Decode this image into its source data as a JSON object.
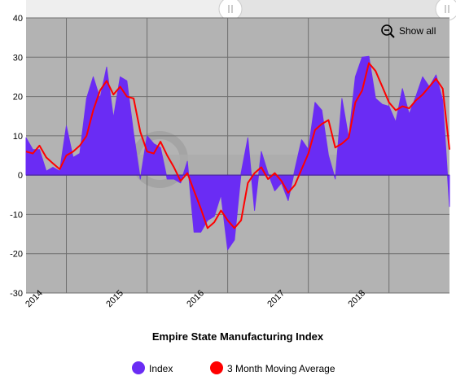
{
  "colors": {
    "plot_bg": "#b3b3b3",
    "grid": "#6f6f6f",
    "index_fill": "#6a2cf4",
    "moving_average": "#ff0000",
    "navigator_bg": "#eeeeee"
  },
  "controls": {
    "show_all_label": "Show all",
    "zoom_icon": "zoom-out-icon"
  },
  "chart_data": {
    "type": "area",
    "title": "Empire State Manufacturing Index",
    "xlabel": "",
    "ylabel": "",
    "ylim": [
      -30,
      40
    ],
    "y_ticks": [
      -30,
      -20,
      -10,
      0,
      10,
      20,
      30,
      40
    ],
    "x_range": [
      "2013-07",
      "2018-10"
    ],
    "x_ticks": [
      {
        "label": "2014",
        "date": "2014-01"
      },
      {
        "label": "2015",
        "date": "2015-01"
      },
      {
        "label": "2016",
        "date": "2016-01"
      },
      {
        "label": "2017",
        "date": "2017-01"
      },
      {
        "label": "2018",
        "date": "2018-01"
      }
    ],
    "grid": true,
    "legend_position": "bottom",
    "x": [
      "2013-07",
      "2013-08",
      "2013-09",
      "2013-10",
      "2013-11",
      "2013-12",
      "2014-01",
      "2014-02",
      "2014-03",
      "2014-04",
      "2014-05",
      "2014-06",
      "2014-07",
      "2014-08",
      "2014-09",
      "2014-10",
      "2014-11",
      "2014-12",
      "2015-01",
      "2015-02",
      "2015-03",
      "2015-04",
      "2015-05",
      "2015-06",
      "2015-07",
      "2015-08",
      "2015-09",
      "2015-10",
      "2015-11",
      "2015-12",
      "2016-01",
      "2016-02",
      "2016-03",
      "2016-04",
      "2016-05",
      "2016-06",
      "2016-07",
      "2016-08",
      "2016-09",
      "2016-10",
      "2016-11",
      "2016-12",
      "2017-01",
      "2017-02",
      "2017-03",
      "2017-04",
      "2017-05",
      "2017-06",
      "2017-07",
      "2017-08",
      "2017-09",
      "2017-10",
      "2017-11",
      "2017-12",
      "2018-01",
      "2018-02",
      "2018-03",
      "2018-04",
      "2018-05",
      "2018-06",
      "2018-07",
      "2018-08",
      "2018-09",
      "2018-10"
    ],
    "series": [
      {
        "name": "Index",
        "kind": "area",
        "values": [
          9.5,
          6.5,
          6.5,
          1.0,
          2.0,
          1.0,
          12.5,
          4.5,
          5.5,
          19.5,
          25.0,
          19.5,
          27.5,
          14.5,
          25.0,
          24.0,
          10.5,
          -1.0,
          10.0,
          8.0,
          7.0,
          -1.0,
          -1.0,
          -2.0,
          3.5,
          -14.5,
          -14.5,
          -11.5,
          -10.5,
          -5.0,
          -19.0,
          -16.5,
          0.5,
          9.5,
          -9.0,
          6.0,
          0.5,
          -4.0,
          -2.0,
          -6.5,
          1.5,
          9.0,
          6.5,
          18.5,
          16.5,
          5.0,
          -1.0,
          19.5,
          9.5,
          25.0,
          30.0,
          30.2,
          19.5,
          18.0,
          17.5,
          13.5,
          22.0,
          15.5,
          20.0,
          25.0,
          22.5,
          25.5,
          19.0,
          -8.0
        ]
      },
      {
        "name": "3 Month Moving Average",
        "kind": "line",
        "values": [
          6.0,
          5.5,
          7.5,
          4.5,
          3.0,
          1.5,
          5.0,
          6.0,
          7.5,
          10.0,
          16.5,
          21.5,
          24.0,
          20.5,
          22.5,
          20.0,
          19.5,
          11.0,
          6.0,
          5.5,
          8.5,
          5.0,
          2.0,
          -1.5,
          0.5,
          -4.0,
          -8.5,
          -13.5,
          -12.0,
          -9.0,
          -11.5,
          -13.5,
          -11.5,
          -2.0,
          0.5,
          2.0,
          -1.0,
          0.5,
          -1.5,
          -4.5,
          -2.5,
          1.5,
          5.5,
          11.5,
          13.0,
          14.0,
          7.0,
          8.0,
          9.5,
          18.5,
          21.5,
          28.5,
          26.5,
          22.5,
          18.5,
          16.5,
          17.5,
          17.0,
          19.0,
          20.5,
          22.5,
          24.5,
          22.0,
          6.5
        ]
      }
    ]
  }
}
